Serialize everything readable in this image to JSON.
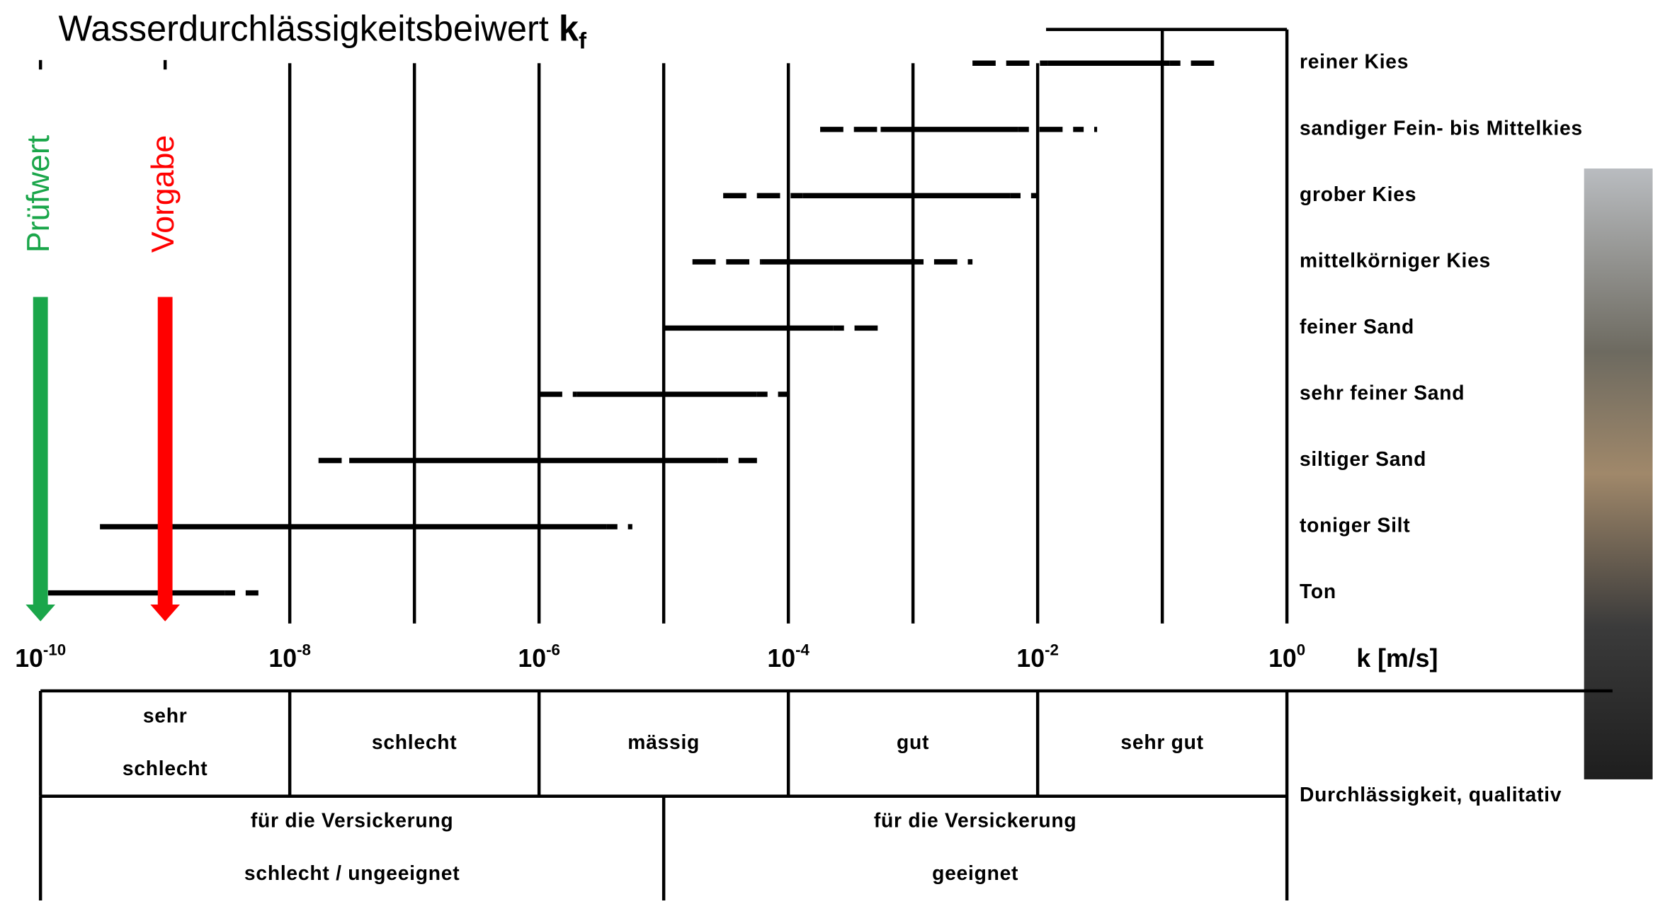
{
  "chart_data": {
    "type": "range",
    "title": "Wasserdurchlässigkeitsbeiwert",
    "title_symbol": "k",
    "title_subscript": "f",
    "x_label": "k [m/s]",
    "log_scale": true,
    "xlim": [
      1e-10,
      1
    ],
    "xticks": [
      {
        "value": 1e-10,
        "label": "10",
        "sup": "-10"
      },
      {
        "value": 1e-09
      },
      {
        "value": 1e-08,
        "label": "10",
        "sup": "-8"
      },
      {
        "value": 1e-07
      },
      {
        "value": 1e-06,
        "label": "10",
        "sup": "-6"
      },
      {
        "value": 1e-05
      },
      {
        "value": 0.0001,
        "label": "10",
        "sup": "-4"
      },
      {
        "value": 0.001
      },
      {
        "value": 0.01,
        "label": "10",
        "sup": "-2"
      },
      {
        "value": 0.1
      },
      {
        "value": 1,
        "label": "10",
        "sup": "0"
      }
    ],
    "categories": [
      "reiner Kies",
      "sandiger Fein- bis Mittelkies",
      "grober Kies",
      "mittelkörniger Kies",
      "feiner Sand",
      "sehr feiner Sand",
      "siltiger Sand",
      "toniger Silt",
      "Ton"
    ],
    "solid": [
      [
        0.012,
        0.115
      ],
      [
        0.00055,
        0.007
      ],
      [
        0.00013,
        0.006
      ],
      [
        6e-05,
        0.001
      ],
      [
        1e-05,
        0.00023
      ],
      [
        2e-06,
        5.6e-05
      ],
      [
        3e-08,
        2.7e-05
      ],
      [
        3e-10,
        3.5e-06
      ],
      [
        1.15e-10,
        3e-09
      ]
    ],
    "extended": [
      [
        0.003,
        0.3
      ],
      [
        0.00018,
        0.03
      ],
      [
        3e-05,
        0.01
      ],
      [
        1.7e-05,
        0.003
      ],
      [
        1e-05,
        0.00056
      ],
      [
        1e-06,
        0.0001
      ],
      [
        1.7e-08,
        5.6e-05
      ],
      [
        3e-10,
        5.6e-06
      ],
      [
        1.15e-10,
        5.6e-09
      ]
    ],
    "color": "#000000",
    "markers": [
      {
        "label": "Prüfwert",
        "value": 1e-10,
        "color": "#1aa64a"
      },
      {
        "label": "Vorgabe",
        "value": 1e-09,
        "color": "#ff0000"
      }
    ],
    "table": {
      "row_label": "Durchlässigkeit, qualitativ",
      "quality": [
        {
          "range": [
            1e-10,
            1e-08
          ],
          "lines": [
            "sehr",
            "schlecht"
          ]
        },
        {
          "range": [
            1e-08,
            1e-06
          ],
          "lines": [
            "schlecht"
          ]
        },
        {
          "range": [
            1e-06,
            0.0001
          ],
          "lines": [
            "mässig"
          ]
        },
        {
          "range": [
            0.0001,
            0.01
          ],
          "lines": [
            "gut"
          ]
        },
        {
          "range": [
            0.01,
            1
          ],
          "lines": [
            "sehr gut"
          ]
        }
      ],
      "infiltration": [
        {
          "range": [
            1e-10,
            1e-05
          ],
          "lines": [
            "für die Versickerung",
            "schlecht / ungeeignet"
          ]
        },
        {
          "range": [
            1e-05,
            1
          ],
          "lines": [
            "für die Versickerung",
            "geeignet"
          ]
        }
      ]
    }
  }
}
